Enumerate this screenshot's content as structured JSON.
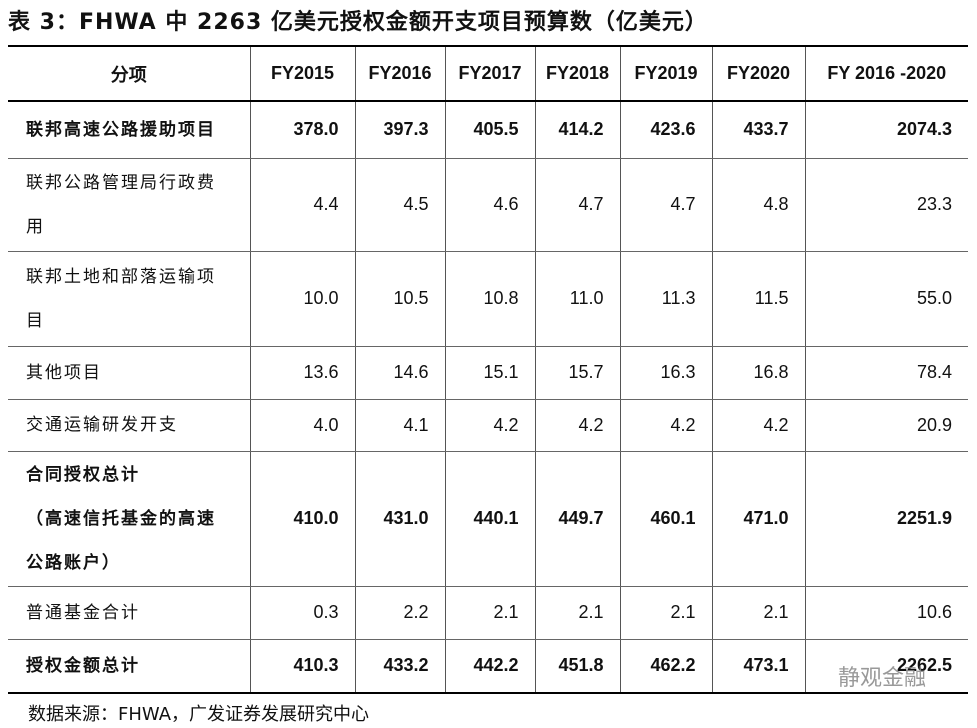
{
  "title": "表 3：FHWA 中 2263 亿美元授权金额开支项目预算数（亿美元）",
  "table": {
    "header": [
      "分项",
      "FY2015",
      "FY2016",
      "FY2017",
      "FY2018",
      "FY2019",
      "FY2020",
      "FY 2016 -2020"
    ],
    "rows": [
      {
        "label": [
          "联邦高速公路援助项目"
        ],
        "values": [
          "378.0",
          "397.3",
          "405.5",
          "414.2",
          "423.6",
          "433.7",
          "2074.3"
        ],
        "bold": true
      },
      {
        "label": [
          "联邦公路管理局行政费",
          "用"
        ],
        "values": [
          "4.4",
          "4.5",
          "4.6",
          "4.7",
          "4.7",
          "4.8",
          "23.3"
        ],
        "bold": false
      },
      {
        "label": [
          "联邦土地和部落运输项",
          "目"
        ],
        "values": [
          "10.0",
          "10.5",
          "10.8",
          "11.0",
          "11.3",
          "11.5",
          "55.0"
        ],
        "bold": false
      },
      {
        "label": [
          "其他项目"
        ],
        "values": [
          "13.6",
          "14.6",
          "15.1",
          "15.7",
          "16.3",
          "16.8",
          "78.4"
        ],
        "bold": false
      },
      {
        "label": [
          "交通运输研发开支"
        ],
        "values": [
          "4.0",
          "4.1",
          "4.2",
          "4.2",
          "4.2",
          "4.2",
          "20.9"
        ],
        "bold": false
      },
      {
        "label": [
          "合同授权总计",
          "（高速信托基金的高速",
          "公路账户）"
        ],
        "values": [
          "410.0",
          "431.0",
          "440.1",
          "449.7",
          "460.1",
          "471.0",
          "2251.9"
        ],
        "bold": true
      },
      {
        "label": [
          "普通基金合计"
        ],
        "values": [
          "0.3",
          "2.2",
          "2.1",
          "2.1",
          "2.1",
          "2.1",
          "10.6"
        ],
        "bold": false
      },
      {
        "label": [
          "授权金额总计"
        ],
        "values": [
          "410.3",
          "433.2",
          "442.2",
          "451.8",
          "462.2",
          "473.1",
          "2262.5"
        ],
        "bold": true
      }
    ]
  },
  "source": "数据来源：FHWA，广发证券发展研究中心",
  "watermark": "静观金融"
}
